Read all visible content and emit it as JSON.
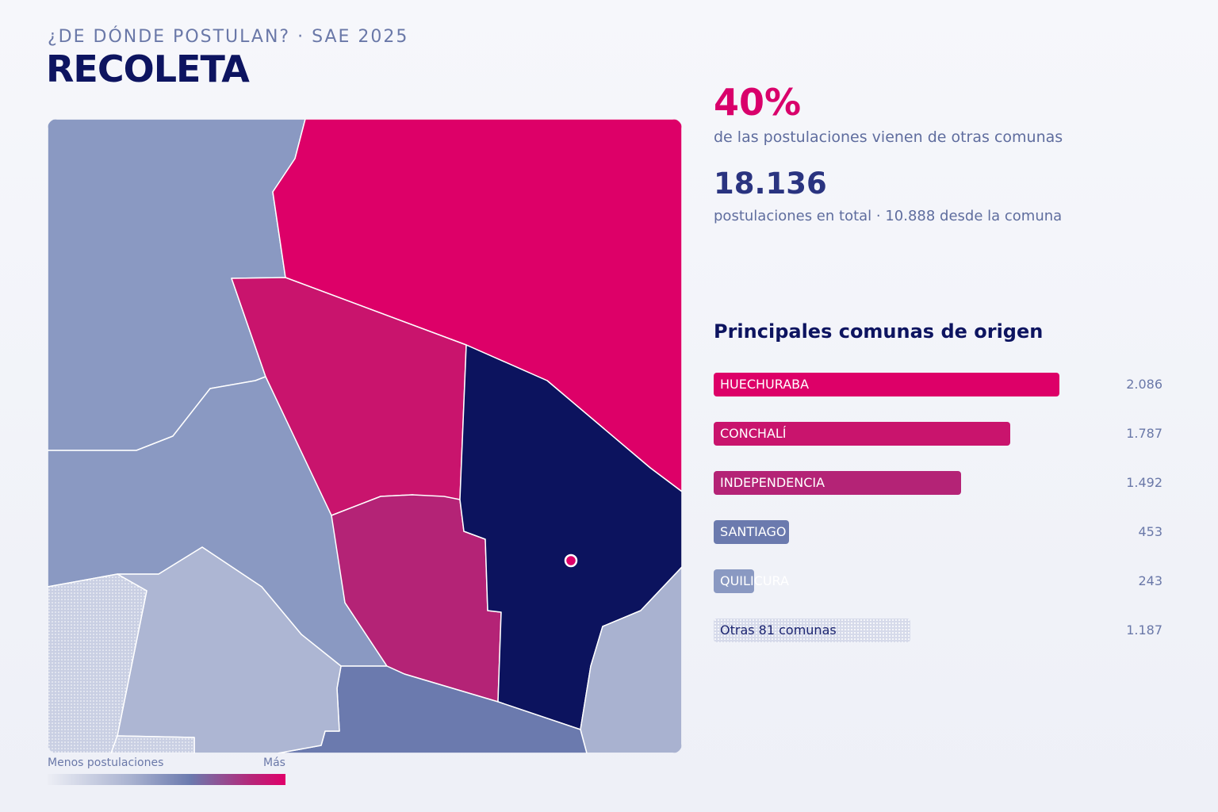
{
  "header": {
    "kicker": "¿DE DÓNDE POSTULAN? · SAE 2025",
    "title": "RECOLETA"
  },
  "stats": {
    "percent": "40%",
    "percent_label": "de las postulaciones vienen de otras comunas",
    "total": "18.136",
    "total_label": "postulaciones en total · 10.888 desde la comuna"
  },
  "origins": {
    "title": "Principales comunas de origen",
    "items": [
      {
        "label": "HUECHURABA",
        "value": "2.086",
        "count": 2086,
        "color": "#dd0068",
        "text_color": "#ffffff"
      },
      {
        "label": "CONCHALÍ",
        "value": "1.787",
        "count": 1787,
        "color": "#c9146d",
        "text_color": "#ffffff"
      },
      {
        "label": "INDEPENDENCIA",
        "value": "1.492",
        "count": 1492,
        "color": "#b42376",
        "text_color": "#ffffff"
      },
      {
        "label": "SANTIAGO",
        "value": "453",
        "count": 453,
        "color": "#6b7aae",
        "text_color": "#ffffff"
      },
      {
        "label": "QUILICURA",
        "value": "243",
        "count": 243,
        "color": "#8a99c2",
        "text_color": "#ffffff"
      },
      {
        "label": "Otras 81 comunas",
        "value": "1.187",
        "count": 1187,
        "color": "#d6daea",
        "text_color": "#1b2470",
        "pattern": "dotted"
      }
    ]
  },
  "legend": {
    "low": "Menos postulaciones",
    "high": "Más"
  },
  "colors": {
    "accent": "#d9006b",
    "navy": "#0d1460",
    "home_commune": "#0c135e"
  }
}
